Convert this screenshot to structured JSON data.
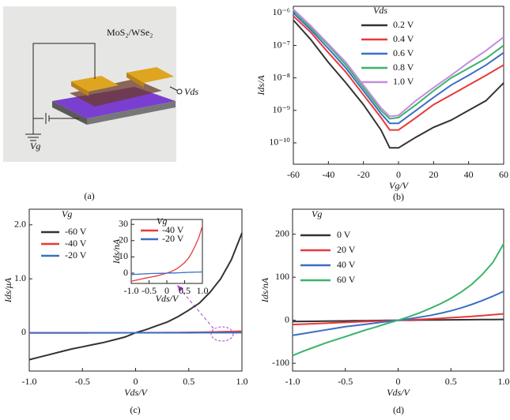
{
  "schematic": {
    "material": "MoS₂/WSe₂",
    "drain_label": "Vds",
    "gate_label": "Vg",
    "caption": "(a)"
  },
  "chart_data": [
    {
      "type": "line",
      "caption": "(b)",
      "xlabel": "Vg/V",
      "ylabel": "Ids/A",
      "legend_title": "Vds",
      "log_y": true,
      "x": [
        -60,
        -50,
        -40,
        -30,
        -20,
        -10,
        -5,
        0,
        10,
        20,
        30,
        40,
        50,
        60
      ],
      "xlim": [
        -60,
        60
      ],
      "xticks": [
        -60,
        -40,
        -20,
        0,
        20,
        40,
        60
      ],
      "ylim": [
        2.2e-11,
        1.6e-06
      ],
      "yticks": [
        {
          "value": 1e-10,
          "label": "10⁻¹⁰"
        },
        {
          "value": 1e-09,
          "label": "10⁻⁹"
        },
        {
          "value": 1e-08,
          "label": "10⁻⁸"
        },
        {
          "value": 1e-07,
          "label": "10⁻⁷"
        },
        {
          "value": 1e-06,
          "label": "10⁻⁶"
        }
      ],
      "series": [
        {
          "name": "0.2 V",
          "color": "#333333",
          "values": [
            6e-07,
            1.5e-07,
            3e-08,
            7e-09,
            1.5e-09,
            2.5e-10,
            7e-11,
            7e-11,
            1.5e-10,
            3e-10,
            5e-10,
            1e-09,
            2e-09,
            7e-09
          ]
        },
        {
          "name": "0.4 V",
          "color": "#e8393b",
          "values": [
            8e-07,
            2.5e-07,
            6e-08,
            1.5e-08,
            3e-09,
            6e-10,
            2.5e-10,
            2.5e-10,
            6e-10,
            1.5e-09,
            3e-09,
            6e-09,
            1.2e-08,
            2.5e-08
          ]
        },
        {
          "name": "0.6 V",
          "color": "#3a6fc4",
          "values": [
            1e-06,
            3e-07,
            8e-08,
            2e-08,
            4e-09,
            8e-10,
            4e-10,
            4e-10,
            1e-09,
            2.5e-09,
            6e-09,
            1.2e-08,
            2.5e-08,
            6e-08
          ]
        },
        {
          "name": "0.8 V",
          "color": "#3bb36a",
          "values": [
            1.2e-06,
            3.5e-07,
            1e-07,
            2.5e-08,
            5e-09,
            1e-09,
            5.5e-10,
            6e-10,
            1.5e-09,
            4e-09,
            1e-08,
            2e-08,
            4e-08,
            1e-07
          ]
        },
        {
          "name": "1.0 V",
          "color": "#c58ce0",
          "values": [
            1.3e-06,
            4e-07,
            1.1e-07,
            3e-08,
            6e-09,
            1.2e-09,
            6.5e-10,
            7e-10,
            2e-09,
            5e-09,
            1.2e-08,
            3e-08,
            7e-08,
            1.8e-07
          ]
        }
      ]
    },
    {
      "type": "line",
      "caption": "(c)",
      "xlabel": "Vds/V",
      "ylabel": "Ids/μA",
      "legend_title": "Vg",
      "x": [
        -1,
        -0.9,
        -0.8,
        -0.7,
        -0.6,
        -0.5,
        -0.4,
        -0.3,
        -0.2,
        -0.1,
        0,
        0.1,
        0.2,
        0.3,
        0.4,
        0.5,
        0.6,
        0.7,
        0.8,
        0.9,
        1
      ],
      "xlim": [
        -1,
        1
      ],
      "xticks": [
        {
          "value": -1,
          "label": "-1.0"
        },
        -0.5,
        0,
        0.5,
        {
          "value": 1,
          "label": "1.0"
        }
      ],
      "ylim": [
        -0.71,
        2.29
      ],
      "yticks": [
        0,
        {
          "value": 1,
          "label": "1.0"
        },
        {
          "value": 2,
          "label": "2.0"
        }
      ],
      "series": [
        {
          "name": "-60 V",
          "color": "#333333",
          "values": [
            -0.5,
            -0.45,
            -0.4,
            -0.35,
            -0.3,
            -0.26,
            -0.22,
            -0.18,
            -0.13,
            -0.08,
            0,
            0.06,
            0.13,
            0.2,
            0.3,
            0.42,
            0.55,
            0.75,
            1.0,
            1.35,
            1.85
          ]
        },
        {
          "name": "-40 V",
          "color": "#e8393b",
          "values": [
            -0.005,
            -0.0045,
            -0.004,
            -0.0035,
            -0.003,
            -0.0026,
            -0.0022,
            -0.0018,
            -0.0012,
            -0.0006,
            0,
            0.0008,
            0.0018,
            0.003,
            0.0046,
            0.0065,
            0.009,
            0.0125,
            0.017,
            0.022,
            0.029
          ]
        },
        {
          "name": "-20 V",
          "color": "#3a6fc4",
          "values": [
            -0.0008,
            -0.0007,
            -0.0006,
            -0.0005,
            -0.0004,
            -0.0003,
            -0.0002,
            -0.0002,
            -0.0001,
            -0.0001,
            0,
            0.0001,
            0.0001,
            0.0002,
            0.0003,
            0.0004,
            0.0005,
            0.0006,
            0.0007,
            0.0007,
            0.0008
          ]
        }
      ]
    },
    {
      "type": "line",
      "xlabel": "Vds/V",
      "ylabel": "Ids/nA",
      "legend_title": "Vg",
      "x": [
        -1,
        -0.9,
        -0.8,
        -0.7,
        -0.6,
        -0.5,
        -0.4,
        -0.3,
        -0.2,
        -0.1,
        0,
        0.1,
        0.2,
        0.3,
        0.4,
        0.5,
        0.6,
        0.7,
        0.8,
        0.9,
        1
      ],
      "xlim": [
        -1,
        1
      ],
      "xticks": [
        {
          "value": -1,
          "label": "-1.0"
        },
        -0.5,
        0,
        0.5,
        {
          "value": 1,
          "label": "1.0"
        }
      ],
      "ylim": [
        -6.3,
        33
      ],
      "yticks": [
        0,
        10,
        20,
        30
      ],
      "series": [
        {
          "name": "-40 V",
          "color": "#e8393b",
          "values": [
            -5,
            -4.5,
            -4,
            -3.5,
            -3,
            -2.6,
            -2.2,
            -1.8,
            -1.2,
            -0.6,
            0,
            0.8,
            1.8,
            3,
            4.6,
            6.5,
            9,
            12.5,
            17,
            22,
            29
          ]
        },
        {
          "name": "-20 V",
          "color": "#3a6fc4",
          "values": [
            -0.8,
            -0.7,
            -0.6,
            -0.5,
            -0.4,
            -0.3,
            -0.2,
            -0.2,
            -0.1,
            -0.1,
            0,
            0.1,
            0.1,
            0.2,
            0.3,
            0.4,
            0.5,
            0.6,
            0.7,
            0.7,
            0.8
          ]
        }
      ]
    },
    {
      "type": "line",
      "caption": "(d)",
      "xlabel": "Vds/V",
      "ylabel": "Ids/nA",
      "legend_title": "Vg",
      "x": [
        -1,
        -0.9,
        -0.8,
        -0.7,
        -0.6,
        -0.5,
        -0.4,
        -0.3,
        -0.2,
        -0.1,
        0,
        0.1,
        0.2,
        0.3,
        0.4,
        0.5,
        0.6,
        0.7,
        0.8,
        0.9,
        1
      ],
      "xlim": [
        -1,
        1
      ],
      "xticks": [
        {
          "value": -1,
          "label": "-1.0"
        },
        -0.5,
        0,
        0.5,
        {
          "value": 1,
          "label": "1.0"
        }
      ],
      "ylim": [
        -118,
        258
      ],
      "yticks": [
        -100,
        0,
        100,
        200
      ],
      "series": [
        {
          "name": "0 V",
          "color": "#333333",
          "values": [
            -3,
            -2.7,
            -2.4,
            -2.1,
            -1.8,
            -1.5,
            -1.2,
            -0.9,
            -0.6,
            -0.3,
            0,
            0.2,
            0.4,
            0.6,
            0.8,
            1,
            1.2,
            1.4,
            1.6,
            1.8,
            2
          ]
        },
        {
          "name": "20 V",
          "color": "#e8393b",
          "values": [
            -10,
            -9,
            -8,
            -7,
            -6,
            -5,
            -4,
            -3,
            -2,
            -1,
            0,
            1,
            2,
            3,
            4.5,
            6,
            7.5,
            9,
            11,
            13,
            15
          ]
        },
        {
          "name": "40 V",
          "color": "#3a6fc4",
          "values": [
            -35,
            -31,
            -27,
            -23,
            -19,
            -15,
            -12,
            -9,
            -6,
            -3,
            0,
            3,
            7,
            11,
            16,
            22,
            29,
            37,
            46,
            56,
            67
          ]
        },
        {
          "name": "60 V",
          "color": "#3bb36a",
          "values": [
            -82,
            -72,
            -63,
            -54,
            -46,
            -38,
            -30,
            -22,
            -15,
            -7,
            0,
            8,
            17,
            27,
            38,
            51,
            66,
            84,
            107,
            135,
            178
          ]
        }
      ]
    }
  ]
}
